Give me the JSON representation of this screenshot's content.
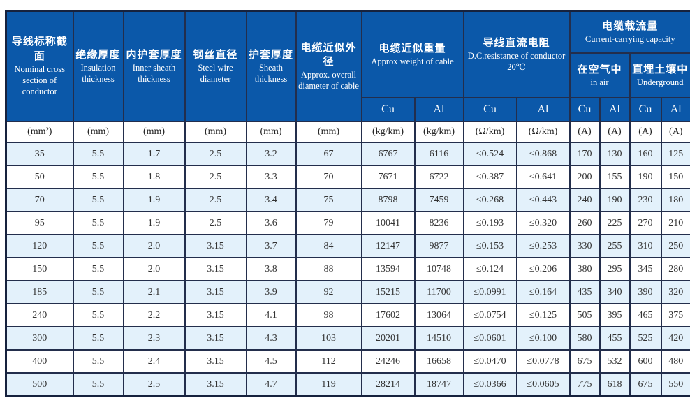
{
  "colors": {
    "header_blue": "#0b58a9",
    "header_text": "#ffffff",
    "alt_row_blue": "#e3f1fb",
    "grid_line": "#232e4c",
    "data_text": "#333333"
  },
  "header": {
    "simple_cols": [
      {
        "zh": "导线标称截面",
        "en": "Nominal cross section of conductor"
      },
      {
        "zh": "绝缘厚度",
        "en": "Insulation thickness"
      },
      {
        "zh": "内护套厚度",
        "en": "Inner sheath thickness"
      },
      {
        "zh": "钢丝直径",
        "en": "Steel wire diameter"
      },
      {
        "zh": "护套厚度",
        "en": "Sheath thickness"
      },
      {
        "zh": "电缆近似外径",
        "en": "Approx. overall diameter of cable"
      }
    ],
    "weight_group": {
      "zh": "电缆近似重量",
      "en": "Approx weight of cable"
    },
    "resistance_group": {
      "zh": "导线直流电阻",
      "en": "D.C.resistance of conductor 20℃"
    },
    "capacity_group": {
      "zh": "电缆载流量",
      "en": "Current-carrying capacity"
    },
    "in_air": {
      "zh": "在空气中",
      "en": "in air"
    },
    "underground": {
      "zh": "直埋土壤中",
      "en": "Underground"
    },
    "metal_labels": [
      "Cu",
      "Al",
      "Cu",
      "Al",
      "Cu",
      "Al",
      "Cu",
      "Al"
    ]
  },
  "units": [
    "(mm²)",
    "(mm)",
    "(mm)",
    "(mm)",
    "(mm)",
    "(mm)",
    "(kg/km)",
    "(kg/km)",
    "(Ω/km)",
    "(Ω/km)",
    "(A)",
    "(A)",
    "(A)",
    "(A)"
  ],
  "rows": [
    [
      "35",
      "5.5",
      "1.7",
      "2.5",
      "3.2",
      "67",
      "6767",
      "6116",
      "≤0.524",
      "≤0.868",
      "170",
      "130",
      "160",
      "125"
    ],
    [
      "50",
      "5.5",
      "1.8",
      "2.5",
      "3.3",
      "70",
      "7671",
      "6722",
      "≤0.387",
      "≤0.641",
      "200",
      "155",
      "190",
      "150"
    ],
    [
      "70",
      "5.5",
      "1.9",
      "2.5",
      "3.4",
      "75",
      "8798",
      "7459",
      "≤0.268",
      "≤0.443",
      "240",
      "190",
      "230",
      "180"
    ],
    [
      "95",
      "5.5",
      "1.9",
      "2.5",
      "3.6",
      "79",
      "10041",
      "8236",
      "≤0.193",
      "≤0.320",
      "260",
      "225",
      "270",
      "210"
    ],
    [
      "120",
      "5.5",
      "2.0",
      "3.15",
      "3.7",
      "84",
      "12147",
      "9877",
      "≤0.153",
      "≤0.253",
      "330",
      "255",
      "310",
      "250"
    ],
    [
      "150",
      "5.5",
      "2.0",
      "3.15",
      "3.8",
      "88",
      "13594",
      "10748",
      "≤0.124",
      "≤0.206",
      "380",
      "295",
      "345",
      "280"
    ],
    [
      "185",
      "5.5",
      "2.1",
      "3.15",
      "3.9",
      "92",
      "15215",
      "11700",
      "≤0.0991",
      "≤0.164",
      "435",
      "340",
      "390",
      "320"
    ],
    [
      "240",
      "5.5",
      "2.2",
      "3.15",
      "4.1",
      "98",
      "17602",
      "13064",
      "≤0.0754",
      "≤0.125",
      "505",
      "395",
      "465",
      "375"
    ],
    [
      "300",
      "5.5",
      "2.3",
      "3.15",
      "4.3",
      "103",
      "20201",
      "14510",
      "≤0.0601",
      "≤0.100",
      "580",
      "455",
      "525",
      "420"
    ],
    [
      "400",
      "5.5",
      "2.4",
      "3.15",
      "4.5",
      "112",
      "24246",
      "16658",
      "≤0.0470",
      "≤0.0778",
      "675",
      "532",
      "600",
      "480"
    ],
    [
      "500",
      "5.5",
      "2.5",
      "3.15",
      "4.7",
      "119",
      "28214",
      "18747",
      "≤0.0366",
      "≤0.0605",
      "775",
      "618",
      "675",
      "550"
    ]
  ]
}
